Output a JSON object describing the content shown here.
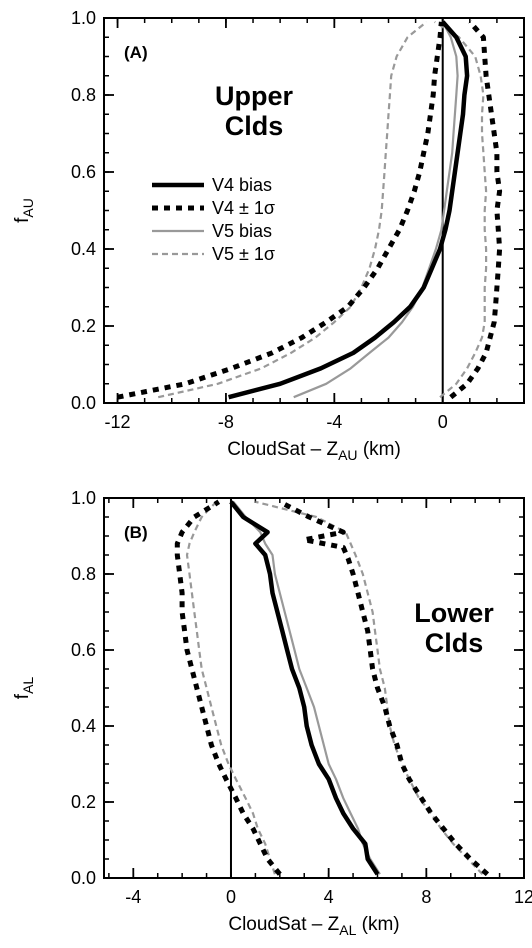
{
  "chart_data": [
    {
      "panel": "(A)",
      "type": "line",
      "region_label": [
        "Upper",
        "Clds"
      ],
      "xlabel": {
        "main": "CloudSat – Z",
        "sub": "AU",
        "unit": " (km)"
      },
      "ylabel": {
        "main": "f",
        "sub": "AU"
      },
      "xlim": [
        -12.5,
        3.0
      ],
      "ylim": [
        0.0,
        1.0
      ],
      "xticks": [
        "-12",
        "-8",
        "-4",
        "0"
      ],
      "xtick_values": [
        -12,
        -8,
        -4,
        0
      ],
      "yticks": [
        "0.0",
        "0.2",
        "0.4",
        "0.6",
        "0.8",
        "1.0"
      ],
      "ytick_values": [
        0.0,
        0.2,
        0.4,
        0.6,
        0.8,
        1.0
      ],
      "zero_line_x": 0,
      "legend": [
        {
          "label": "V4 bias",
          "color": "#000000",
          "style": "solid-thick"
        },
        {
          "label": "V4 ± 1σ",
          "color": "#000000",
          "style": "dotted-thick"
        },
        {
          "label": "V5 bias",
          "color": "#999999",
          "style": "solid-thin"
        },
        {
          "label": "V5 ± 1σ",
          "color": "#999999",
          "style": "dashed-thin"
        }
      ],
      "series": [
        {
          "name": "V4 bias",
          "color": "#000000",
          "style": "solid-thick",
          "x": [
            -7.9,
            -6.0,
            -4.5,
            -3.3,
            -2.5,
            -1.8,
            -1.2,
            -0.7,
            -0.4,
            -0.1,
            0.1,
            0.25,
            0.35,
            0.45,
            0.55,
            0.65,
            0.75,
            0.8,
            0.9,
            0.85,
            0.5,
            0.0
          ],
          "y": [
            0.015,
            0.05,
            0.09,
            0.13,
            0.17,
            0.21,
            0.25,
            0.3,
            0.35,
            0.4,
            0.45,
            0.5,
            0.55,
            0.6,
            0.65,
            0.7,
            0.75,
            0.8,
            0.85,
            0.9,
            0.95,
            0.99
          ]
        },
        {
          "name": "V4 + 1σ",
          "color": "#000000",
          "style": "dotted-thick",
          "x": [
            0.3,
            0.9,
            1.3,
            1.6,
            1.75,
            1.9,
            1.95,
            2.0,
            2.05,
            2.1,
            2.05,
            2.0,
            2.1,
            2.0,
            2.0,
            1.9,
            1.8,
            1.7,
            1.6,
            1.55,
            1.5,
            1.0
          ],
          "y": [
            0.015,
            0.05,
            0.09,
            0.13,
            0.17,
            0.21,
            0.25,
            0.3,
            0.35,
            0.4,
            0.45,
            0.5,
            0.55,
            0.6,
            0.65,
            0.7,
            0.75,
            0.8,
            0.85,
            0.9,
            0.95,
            0.99
          ]
        },
        {
          "name": "V4 - 1σ",
          "color": "#000000",
          "style": "dotted-thick",
          "x": [
            -12.0,
            -9.5,
            -7.8,
            -6.3,
            -5.2,
            -4.3,
            -3.5,
            -2.9,
            -2.4,
            -2.0,
            -1.6,
            -1.3,
            -1.05,
            -0.85,
            -0.7,
            -0.55,
            -0.45,
            -0.35,
            -0.3,
            -0.2,
            -0.1,
            -0.05
          ],
          "y": [
            0.015,
            0.05,
            0.09,
            0.13,
            0.17,
            0.21,
            0.25,
            0.3,
            0.35,
            0.4,
            0.45,
            0.5,
            0.55,
            0.6,
            0.65,
            0.7,
            0.75,
            0.8,
            0.85,
            0.9,
            0.95,
            0.99
          ]
        },
        {
          "name": "V5 bias",
          "color": "#999999",
          "style": "solid-thin",
          "x": [
            -5.5,
            -4.3,
            -3.4,
            -2.7,
            -2.0,
            -1.5,
            -1.1,
            -0.75,
            -0.5,
            -0.25,
            -0.05,
            0.05,
            0.15,
            0.25,
            0.35,
            0.4,
            0.45,
            0.5,
            0.55,
            0.5,
            0.3,
            0.0
          ],
          "y": [
            0.015,
            0.05,
            0.09,
            0.13,
            0.17,
            0.21,
            0.25,
            0.3,
            0.35,
            0.4,
            0.45,
            0.5,
            0.55,
            0.6,
            0.65,
            0.7,
            0.75,
            0.8,
            0.85,
            0.9,
            0.95,
            0.99
          ]
        },
        {
          "name": "V5 + 1σ",
          "color": "#999999",
          "style": "dashed-thin",
          "x": [
            -0.1,
            0.5,
            0.9,
            1.2,
            1.45,
            1.55,
            1.55,
            1.55,
            1.6,
            1.6,
            1.55,
            1.55,
            1.6,
            1.55,
            1.5,
            1.45,
            1.45,
            1.5,
            1.4,
            1.2,
            0.6,
            -0.3
          ],
          "y": [
            0.015,
            0.05,
            0.09,
            0.13,
            0.17,
            0.21,
            0.25,
            0.3,
            0.35,
            0.4,
            0.45,
            0.5,
            0.55,
            0.6,
            0.65,
            0.7,
            0.75,
            0.8,
            0.85,
            0.9,
            0.95,
            0.99
          ]
        },
        {
          "name": "V5 - 1σ",
          "color": "#999999",
          "style": "dashed-thin",
          "x": [
            -10.5,
            -8.3,
            -6.7,
            -5.6,
            -4.7,
            -4.0,
            -3.4,
            -3.0,
            -2.7,
            -2.5,
            -2.35,
            -2.25,
            -2.2,
            -2.15,
            -2.1,
            -2.05,
            -2.0,
            -1.95,
            -1.9,
            -1.7,
            -1.3,
            -0.6
          ],
          "y": [
            0.015,
            0.05,
            0.09,
            0.13,
            0.17,
            0.21,
            0.25,
            0.3,
            0.35,
            0.4,
            0.45,
            0.5,
            0.55,
            0.6,
            0.65,
            0.7,
            0.75,
            0.8,
            0.85,
            0.9,
            0.95,
            0.99
          ]
        }
      ]
    },
    {
      "panel": "(B)",
      "type": "line",
      "region_label": [
        "Lower",
        "Clds"
      ],
      "xlabel": {
        "main": "CloudSat – Z",
        "sub": "AL",
        "unit": " (km)"
      },
      "ylabel": {
        "main": "f",
        "sub": "AL"
      },
      "xlim": [
        -5.2,
        12.0
      ],
      "ylim": [
        0.0,
        1.0
      ],
      "xticks": [
        "-4",
        "0",
        "4",
        "8",
        "12"
      ],
      "xtick_values": [
        -4,
        0,
        4,
        8,
        12
      ],
      "yticks": [
        "0.0",
        "0.2",
        "0.4",
        "0.6",
        "0.8",
        "1.0"
      ],
      "ytick_values": [
        0.0,
        0.2,
        0.4,
        0.6,
        0.8,
        1.0
      ],
      "zero_line_x": 0,
      "series": [
        {
          "name": "V4 bias",
          "color": "#000000",
          "style": "solid-thick",
          "x": [
            6.0,
            5.6,
            5.5,
            5.0,
            4.6,
            4.3,
            4.0,
            3.6,
            3.3,
            3.1,
            3.0,
            2.8,
            2.5,
            2.3,
            2.1,
            1.9,
            1.7,
            1.6,
            1.4,
            1.0,
            1.5,
            0.5,
            0.0
          ],
          "y": [
            0.01,
            0.05,
            0.09,
            0.13,
            0.17,
            0.21,
            0.26,
            0.3,
            0.35,
            0.4,
            0.45,
            0.5,
            0.55,
            0.6,
            0.65,
            0.7,
            0.75,
            0.8,
            0.85,
            0.88,
            0.91,
            0.95,
            0.99
          ]
        },
        {
          "name": "V4 + 1σ",
          "color": "#000000",
          "style": "dotted-thick",
          "x": [
            10.5,
            9.8,
            9.2,
            8.7,
            8.2,
            7.8,
            7.3,
            7.0,
            6.8,
            6.5,
            6.3,
            6.0,
            5.8,
            5.7,
            5.6,
            5.4,
            5.2,
            5.0,
            4.8,
            4.6,
            3.0,
            4.6,
            3.2,
            2.0
          ],
          "y": [
            0.01,
            0.05,
            0.09,
            0.13,
            0.17,
            0.21,
            0.26,
            0.3,
            0.35,
            0.4,
            0.45,
            0.5,
            0.55,
            0.6,
            0.65,
            0.7,
            0.75,
            0.8,
            0.84,
            0.87,
            0.89,
            0.91,
            0.95,
            0.99
          ]
        },
        {
          "name": "V4 - 1σ",
          "color": "#000000",
          "style": "dotted-thick",
          "x": [
            2.0,
            1.5,
            1.2,
            0.9,
            0.5,
            0.2,
            -0.2,
            -0.5,
            -0.8,
            -1.0,
            -1.2,
            -1.4,
            -1.6,
            -1.8,
            -1.9,
            -2.0,
            -2.0,
            -2.1,
            -2.2,
            -2.2,
            -2.0,
            -1.5,
            -0.5
          ],
          "y": [
            0.01,
            0.05,
            0.09,
            0.13,
            0.17,
            0.21,
            0.26,
            0.3,
            0.35,
            0.4,
            0.45,
            0.5,
            0.55,
            0.6,
            0.65,
            0.7,
            0.75,
            0.8,
            0.85,
            0.88,
            0.91,
            0.95,
            0.99
          ]
        },
        {
          "name": "V5 bias",
          "color": "#999999",
          "style": "solid-thin",
          "x": [
            6.1,
            5.7,
            5.4,
            5.2,
            4.9,
            4.6,
            4.3,
            4.0,
            3.8,
            3.6,
            3.4,
            3.1,
            2.8,
            2.6,
            2.4,
            2.2,
            2.0,
            1.8,
            1.7,
            1.4,
            1.2,
            0.6,
            0.1
          ],
          "y": [
            0.01,
            0.05,
            0.09,
            0.13,
            0.17,
            0.21,
            0.26,
            0.3,
            0.35,
            0.4,
            0.45,
            0.5,
            0.55,
            0.6,
            0.65,
            0.7,
            0.75,
            0.8,
            0.85,
            0.88,
            0.91,
            0.95,
            0.99
          ]
        },
        {
          "name": "V5 + 1σ",
          "color": "#999999",
          "style": "dashed-thin",
          "x": [
            10.3,
            9.7,
            9.1,
            8.6,
            8.2,
            7.7,
            7.3,
            7.0,
            6.7,
            6.5,
            6.4,
            6.3,
            6.1,
            6.0,
            5.9,
            5.8,
            5.6,
            5.4,
            5.1,
            4.9,
            4.7,
            3.5,
            1.0
          ],
          "y": [
            0.01,
            0.05,
            0.09,
            0.13,
            0.17,
            0.21,
            0.26,
            0.3,
            0.35,
            0.4,
            0.45,
            0.5,
            0.55,
            0.6,
            0.65,
            0.7,
            0.75,
            0.8,
            0.85,
            0.88,
            0.91,
            0.95,
            0.99
          ]
        },
        {
          "name": "V5 - 1σ",
          "color": "#999999",
          "style": "dashed-thin",
          "x": [
            1.8,
            1.6,
            1.4,
            1.1,
            0.9,
            0.6,
            0.2,
            -0.1,
            -0.4,
            -0.6,
            -0.8,
            -1.0,
            -1.2,
            -1.3,
            -1.4,
            -1.5,
            -1.6,
            -1.7,
            -1.8,
            -1.7,
            -1.5,
            -1.2,
            -0.6
          ],
          "y": [
            0.01,
            0.05,
            0.09,
            0.13,
            0.17,
            0.21,
            0.26,
            0.3,
            0.35,
            0.4,
            0.45,
            0.5,
            0.55,
            0.6,
            0.65,
            0.7,
            0.75,
            0.8,
            0.85,
            0.88,
            0.91,
            0.95,
            0.99
          ]
        }
      ]
    }
  ]
}
